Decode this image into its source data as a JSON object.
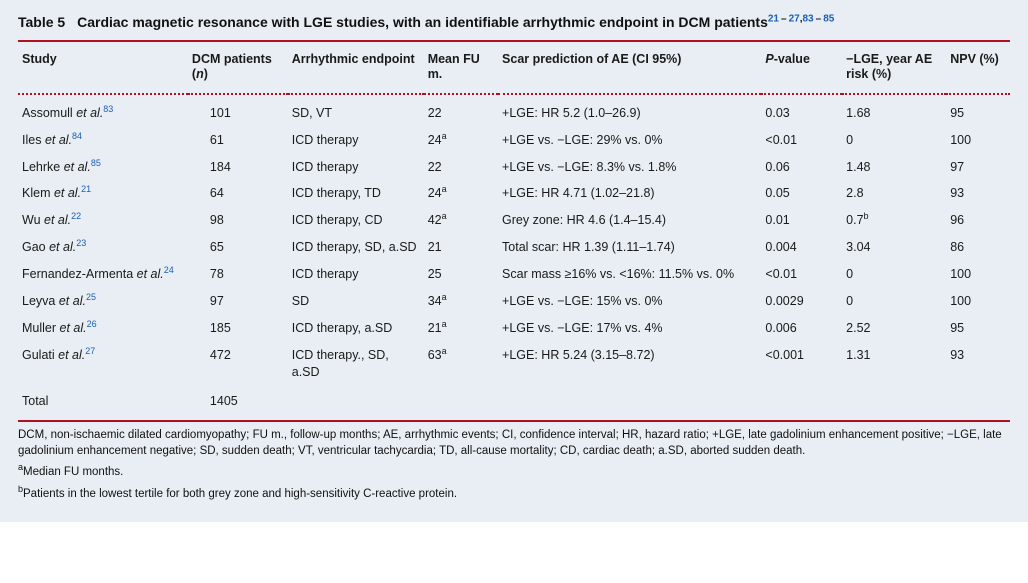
{
  "colors": {
    "background": "#e8eef3",
    "rule_red": "#b01024",
    "link": "#1a5fb4",
    "text": "#1a1a1a"
  },
  "typography": {
    "body_pt": 12.5,
    "caption_pt": 14,
    "footnote_pt": 11.5,
    "font_family": "Gill Sans / Segoe UI / sans-serif"
  },
  "caption": {
    "label": "Table 5",
    "title_prefix": "Cardiac magnetic resonance with LGE studies, with an identifiable arrhythmic endpoint in DCM patients",
    "refs_html": "<a href=\"#r21\">21</a> – <a href=\"#r27\">27</a>,<a href=\"#r83\">83</a> – <a href=\"#r85\">85</a>"
  },
  "headers": {
    "study": "Study",
    "n": "DCM patients (<span class=\"em\">n</span>)",
    "endpoint": "Arrhythmic endpoint",
    "fu": "Mean FU m.",
    "scar": "Scar prediction of AE (CI 95%)",
    "p": "<span class=\"em\">P</span>-value",
    "lge": "−LGE, year AE risk (%)",
    "npv": "NPV (%)"
  },
  "rows": [
    {
      "study_html": "Assomull <span class=\"em\">et al.</span><sup><a href=\"#r83\">83</a></sup>",
      "n": "101",
      "endpoint": "SD, VT",
      "fu_html": "22",
      "scar_html": "+LGE: HR 5.2 (1.0–26.9)",
      "p": "0.03",
      "lge_html": "1.68",
      "npv": "95"
    },
    {
      "study_html": "Iles <span class=\"em\">et al.</span><sup><a href=\"#r84\">84</a></sup>",
      "n": "61",
      "endpoint": "ICD therapy",
      "fu_html": "24<sup>a</sup>",
      "scar_html": "+LGE vs. −LGE: 29% vs. 0%",
      "p": "<0.01",
      "lge_html": "0",
      "npv": "100"
    },
    {
      "study_html": "Lehrke <span class=\"em\">et al.</span><sup><a href=\"#r85\">85</a></sup>",
      "n": "184",
      "endpoint": "ICD therapy",
      "fu_html": "22",
      "scar_html": "+LGE vs. −LGE: 8.3% vs. 1.8%",
      "p": "0.06",
      "lge_html": "1.48",
      "npv": "97"
    },
    {
      "study_html": "Klem <span class=\"em\">et al.</span><sup><a href=\"#r21\">21</a></sup>",
      "n": "64",
      "endpoint": "ICD therapy, TD",
      "fu_html": "24<sup>a</sup>",
      "scar_html": "+LGE: HR 4.71 (1.02–21.8)",
      "p": "0.05",
      "lge_html": "2.8",
      "npv": "93"
    },
    {
      "study_html": "Wu <span class=\"em\">et al.</span><sup><a href=\"#r22\">22</a></sup>",
      "n": "98",
      "endpoint": "ICD therapy, CD",
      "fu_html": "42<sup>a</sup>",
      "scar_html": "Grey zone: HR 4.6 (1.4–15.4)",
      "p": "0.01",
      "lge_html": "0.7<sup>b</sup>",
      "npv": "96"
    },
    {
      "study_html": "Gao <span class=\"em\">et al.</span><sup><a href=\"#r23\">23</a></sup>",
      "n": "65",
      "endpoint": "ICD therapy, SD, a.SD",
      "fu_html": "21",
      "scar_html": "Total scar: HR 1.39 (1.11–1.74)",
      "p": "0.004",
      "lge_html": "3.04",
      "npv": "86"
    },
    {
      "study_html": "Fernandez-Armenta <span class=\"em\">et al.</span><sup><a href=\"#r24\">24</a></sup>",
      "n": "78",
      "endpoint": "ICD therapy",
      "fu_html": "25",
      "scar_html": "Scar mass ≥16% vs. <16%: 11.5% vs. 0%",
      "p": "<0.01",
      "lge_html": "0",
      "npv": "100"
    },
    {
      "study_html": "Leyva <span class=\"em\">et al.</span><sup><a href=\"#r25\">25</a></sup>",
      "n": "97",
      "endpoint": "SD",
      "fu_html": "34<sup>a</sup>",
      "scar_html": "+LGE vs. −LGE: 15% vs. 0%",
      "p": "0.0029",
      "lge_html": "0",
      "npv": "100"
    },
    {
      "study_html": "Muller <span class=\"em\">et al.</span><sup><a href=\"#r26\">26</a></sup>",
      "n": "185",
      "endpoint": "ICD therapy, a.SD",
      "fu_html": "21<sup>a</sup>",
      "scar_html": "+LGE vs. −LGE: 17% vs. 4%",
      "p": "0.006",
      "lge_html": "2.52",
      "npv": "95"
    },
    {
      "study_html": "Gulati <span class=\"em\">et al.</span><sup><a href=\"#r27\">27</a></sup>",
      "n": "472",
      "endpoint": "ICD therapy., SD, a.SD",
      "fu_html": "63<sup>a</sup>",
      "scar_html": "+LGE: HR 5.24 (3.15–8.72)",
      "p": "<0.001",
      "lge_html": "1.31",
      "npv": "93"
    }
  ],
  "total": {
    "label": "Total",
    "n": "1405"
  },
  "footnotes": {
    "abbrev": "DCM, non-ischaemic dilated cardiomyopathy; FU m., follow-up months; AE, arrhythmic events; CI, confidence interval; HR, hazard ratio; +LGE, late gadolinium enhancement positive; −LGE, late gadolinium enhancement negative; SD, sudden death; VT, ventricular tachycardia; TD, all-cause mortality; CD, cardiac death; a.SD, aborted sudden death.",
    "a": "Median FU months.",
    "b": "Patients in the lowest tertile for both grey zone and high-sensitivity C-reactive protein."
  }
}
